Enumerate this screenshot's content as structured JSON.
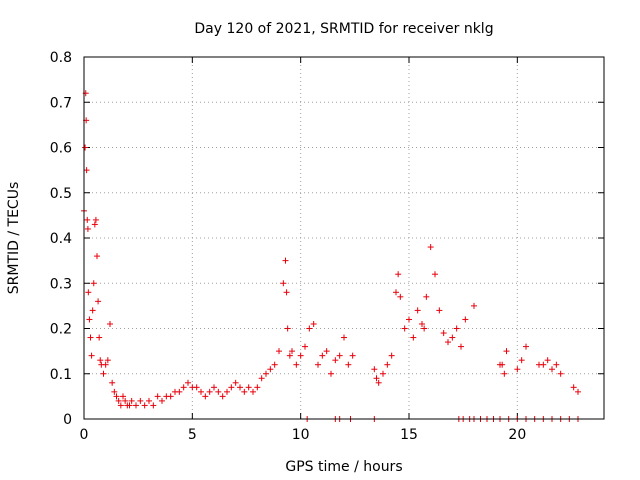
{
  "chart_data": {
    "type": "scatter",
    "title": "Day 120 of 2021, SRMTID for receiver nklg",
    "xlabel": "GPS time / hours",
    "ylabel": "SRMTID / TECUs",
    "xlim": [
      0,
      24
    ],
    "ylim": [
      0,
      0.8
    ],
    "x_ticks": [
      0,
      5,
      10,
      15,
      20
    ],
    "y_ticks": [
      0,
      0.1,
      0.2,
      0.3,
      0.4,
      0.5,
      0.6,
      0.7,
      0.8
    ],
    "x_tick_labels": [
      "0",
      "5",
      "10",
      "15",
      "20"
    ],
    "y_tick_labels": [
      "0",
      "0.1",
      "0.2",
      "0.3",
      "0.4",
      "0.5",
      "0.6",
      "0.7",
      "0.8"
    ],
    "grid": true,
    "marker": "+",
    "series": [
      {
        "name": "SRMTID",
        "color": "#e8000b",
        "x": [
          0.0,
          0.05,
          0.08,
          0.1,
          0.12,
          0.15,
          0.18,
          0.2,
          0.25,
          0.3,
          0.35,
          0.4,
          0.45,
          0.5,
          0.55,
          0.6,
          0.65,
          0.7,
          0.75,
          0.8,
          0.9,
          1.0,
          1.1,
          1.2,
          1.3,
          1.4,
          1.5,
          1.6,
          1.7,
          1.8,
          1.9,
          2.0,
          2.1,
          2.2,
          2.4,
          2.6,
          2.8,
          3.0,
          3.2,
          3.4,
          3.6,
          3.8,
          4.0,
          4.2,
          4.4,
          4.6,
          4.8,
          5.0,
          5.2,
          5.4,
          5.6,
          5.8,
          6.0,
          6.2,
          6.4,
          6.6,
          6.8,
          7.0,
          7.2,
          7.4,
          7.6,
          7.8,
          8.0,
          8.2,
          8.4,
          8.6,
          8.8,
          9.0,
          9.2,
          9.3,
          9.35,
          9.4,
          9.5,
          9.6,
          9.8,
          10.0,
          10.2,
          10.4,
          10.6,
          10.8,
          11.0,
          11.2,
          11.4,
          11.6,
          11.8,
          12.0,
          12.2,
          12.4,
          13.4,
          13.5,
          13.6,
          13.8,
          14.0,
          14.2,
          14.4,
          14.5,
          14.6,
          14.8,
          15.0,
          15.2,
          15.4,
          15.6,
          15.7,
          15.8,
          16.0,
          16.2,
          16.4,
          16.6,
          16.8,
          17.0,
          17.2,
          17.4,
          17.6,
          18.0,
          19.2,
          19.3,
          19.4,
          19.5,
          20.0,
          20.2,
          20.4,
          21.0,
          21.2,
          21.4,
          21.6,
          21.8,
          22.0,
          22.6,
          22.8,
          10.3,
          11.6,
          11.8,
          12.3,
          13.4,
          17.3,
          17.5,
          17.8,
          18.0,
          18.3,
          18.6,
          18.9,
          19.2,
          19.6,
          20.0,
          20.4,
          20.8,
          21.2,
          21.6,
          22.0,
          22.4,
          22.8
        ],
        "y": [
          0.46,
          0.6,
          0.72,
          0.66,
          0.55,
          0.44,
          0.42,
          0.28,
          0.22,
          0.18,
          0.14,
          0.24,
          0.3,
          0.43,
          0.44,
          0.36,
          0.26,
          0.18,
          0.13,
          0.12,
          0.1,
          0.12,
          0.13,
          0.21,
          0.08,
          0.06,
          0.05,
          0.04,
          0.03,
          0.05,
          0.04,
          0.03,
          0.03,
          0.04,
          0.03,
          0.04,
          0.03,
          0.04,
          0.03,
          0.05,
          0.04,
          0.05,
          0.05,
          0.06,
          0.06,
          0.07,
          0.08,
          0.07,
          0.07,
          0.06,
          0.05,
          0.06,
          0.07,
          0.06,
          0.05,
          0.06,
          0.07,
          0.08,
          0.07,
          0.06,
          0.07,
          0.06,
          0.07,
          0.09,
          0.1,
          0.11,
          0.12,
          0.15,
          0.3,
          0.35,
          0.28,
          0.2,
          0.14,
          0.15,
          0.12,
          0.14,
          0.16,
          0.2,
          0.21,
          0.12,
          0.14,
          0.15,
          0.1,
          0.13,
          0.14,
          0.18,
          0.12,
          0.14,
          0.11,
          0.09,
          0.08,
          0.1,
          0.12,
          0.14,
          0.28,
          0.32,
          0.27,
          0.2,
          0.22,
          0.18,
          0.24,
          0.21,
          0.2,
          0.27,
          0.38,
          0.32,
          0.24,
          0.19,
          0.17,
          0.18,
          0.2,
          0.16,
          0.22,
          0.25,
          0.12,
          0.12,
          0.1,
          0.15,
          0.11,
          0.13,
          0.16,
          0.12,
          0.12,
          0.13,
          0.11,
          0.12,
          0.1,
          0.07,
          0.06,
          0.0,
          0.0,
          0.0,
          0.0,
          0.0,
          0.0,
          0.0,
          0.0,
          0.0,
          0.0,
          0.0,
          0.0,
          0.0,
          0.0,
          0.0,
          0.0,
          0.0,
          0.0,
          0.0,
          0.0,
          0.0,
          0.0
        ]
      }
    ]
  }
}
